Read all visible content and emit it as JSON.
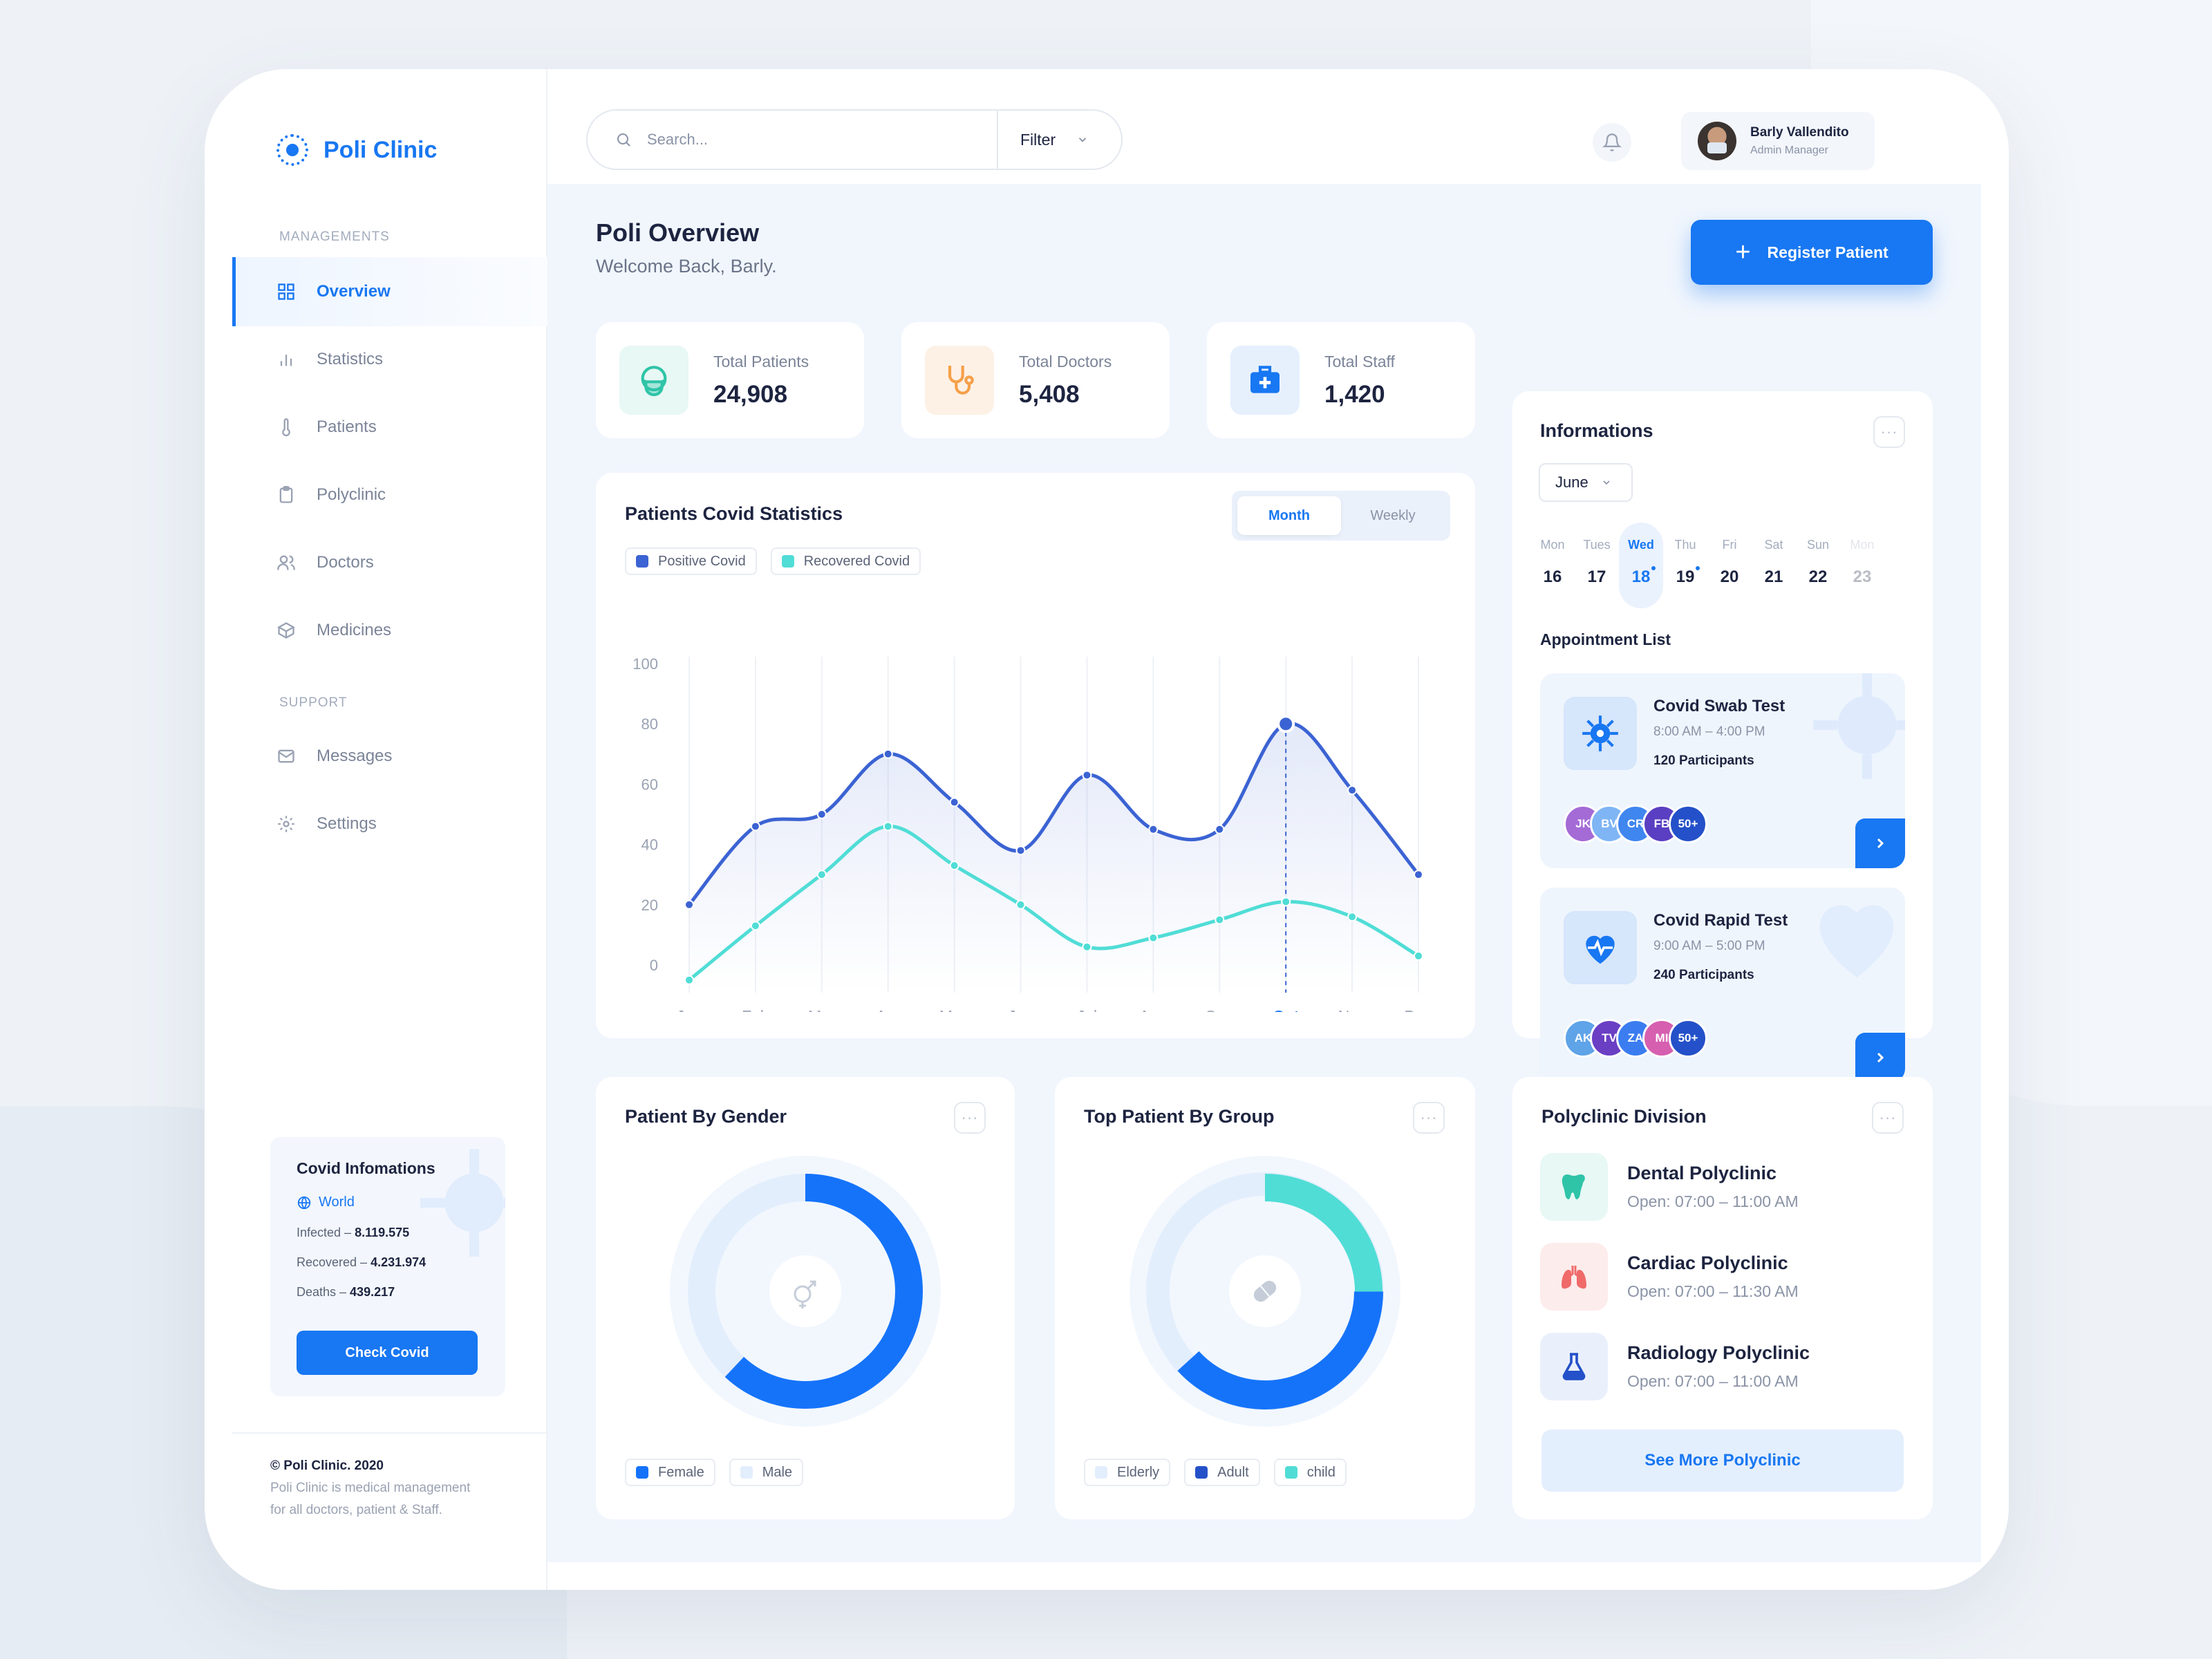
{
  "app": {
    "name": "Poli Clinic"
  },
  "sidebar": {
    "section_managements": "MANAGEMENTS",
    "section_support": "SUPPORT",
    "items": [
      {
        "label": "Overview",
        "icon": "grid-icon",
        "active": true
      },
      {
        "label": "Statistics",
        "icon": "bar-chart-icon"
      },
      {
        "label": "Patients",
        "icon": "thermometer-icon"
      },
      {
        "label": "Polyclinic",
        "icon": "clipboard-icon"
      },
      {
        "label": "Doctors",
        "icon": "users-icon"
      },
      {
        "label": "Medicines",
        "icon": "box-icon"
      }
    ],
    "support_items": [
      {
        "label": "Messages",
        "icon": "mail-icon"
      },
      {
        "label": "Settings",
        "icon": "gear-icon"
      }
    ],
    "covid": {
      "title": "Covid Infomations",
      "region": "World",
      "infected_label": "Infected – ",
      "infected": "8.119.575",
      "recovered_label": "Recovered – ",
      "recovered": "4.231.974",
      "deaths_label": "Deaths – ",
      "deaths": "439.217",
      "button": "Check Covid"
    },
    "footer": {
      "copyright": "© Poli Clinic. 2020",
      "line1": "Poli Clinic is medical management",
      "line2": "for all doctors, patient & Staff."
    }
  },
  "topbar": {
    "search_placeholder": "Search...",
    "filter_label": "Filter",
    "user": {
      "name": "Barly Vallendito",
      "role": "Admin Manager"
    }
  },
  "page": {
    "title": "Poli Overview",
    "subtitle": "Welcome Back, Barly.",
    "register_button": "Register Patient"
  },
  "stats": [
    {
      "label": "Total Patients",
      "value": "24,908",
      "icon": "mask-face-icon",
      "color": "#2fc4a8"
    },
    {
      "label": "Total Doctors",
      "value": "5,408",
      "icon": "stethoscope-icon",
      "color": "#f5a04a"
    },
    {
      "label": "Total Staff",
      "value": "1,420",
      "icon": "medkit-icon",
      "color": "#1877f2"
    }
  ],
  "covid_chart": {
    "title": "Patients Covid Statistics",
    "tab_month": "Month",
    "tab_weekly": "Weekly",
    "highlight_label": "Oct"
  },
  "chart_data": {
    "type": "line",
    "categories": [
      "Jan",
      "Feb",
      "Mar",
      "Apr",
      "May",
      "Jun",
      "Jul",
      "Aug",
      "Sep",
      "Oct",
      "Nov",
      "Des"
    ],
    "y_ticks": [
      "100",
      "80",
      "60",
      "40",
      "20",
      "0"
    ],
    "ylim": [
      0,
      100
    ],
    "series": [
      {
        "name": "Positive Covid",
        "color": "#3b63d3",
        "values": [
          20,
          46,
          50,
          70,
          54,
          38,
          63,
          45,
          45,
          80,
          58,
          30
        ]
      },
      {
        "name": "Recovered Covid",
        "color": "#50ddd6",
        "values": [
          -5,
          13,
          30,
          46,
          33,
          20,
          6,
          9,
          15,
          21,
          16,
          3
        ]
      }
    ],
    "highlight_index": 9
  },
  "informations": {
    "title": "Informations",
    "month": "June",
    "days": [
      {
        "dow": "Mon",
        "date": "16"
      },
      {
        "dow": "Tues",
        "date": "17"
      },
      {
        "dow": "Wed",
        "date": "18"
      },
      {
        "dow": "Thu",
        "date": "19"
      },
      {
        "dow": "Fri",
        "date": "20"
      },
      {
        "dow": "Sat",
        "date": "21"
      },
      {
        "dow": "Sun",
        "date": "22"
      },
      {
        "dow": "Mon",
        "date": "23"
      }
    ],
    "appointment_title": "Appointment List",
    "appointments": [
      {
        "title": "Covid Swab Test",
        "time": "8:00 AM – 4:00 PM",
        "participants": "120 Participants",
        "avatars": [
          "JK",
          "BV",
          "CR",
          "FB",
          "50+"
        ]
      },
      {
        "title": "Covid Rapid Test",
        "time": "9:00 AM – 5:00 PM",
        "participants": "240 Participants",
        "avatars": [
          "AK",
          "TV",
          "ZA",
          "MI",
          "50+"
        ]
      }
    ]
  },
  "gender_chart": {
    "title": "Patient By Gender",
    "legend": [
      {
        "name": "Female",
        "color": "#1573fa"
      },
      {
        "name": "Male",
        "color": "#e3eefc"
      }
    ]
  },
  "group_chart": {
    "title": "Top Patient By Group",
    "legend": [
      {
        "name": "Elderly",
        "color": "#e3eefc"
      },
      {
        "name": "Adult",
        "color": "#2451c9"
      },
      {
        "name": "child",
        "color": "#50ddd6"
      }
    ]
  },
  "polyclinic": {
    "title": "Polyclinic Division",
    "items": [
      {
        "name": "Dental Polyclinic",
        "open": "Open: 07:00 – 11:00 AM",
        "icon": "tooth-icon"
      },
      {
        "name": "Cardiac Polyclinic",
        "open": "Open: 07:00 – 11:30 AM",
        "icon": "lungs-icon"
      },
      {
        "name": "Radiology Polyclinic",
        "open": "Open: 07:00 – 11:00 AM",
        "icon": "flask-icon"
      }
    ],
    "button": "See More Polyclinic"
  }
}
